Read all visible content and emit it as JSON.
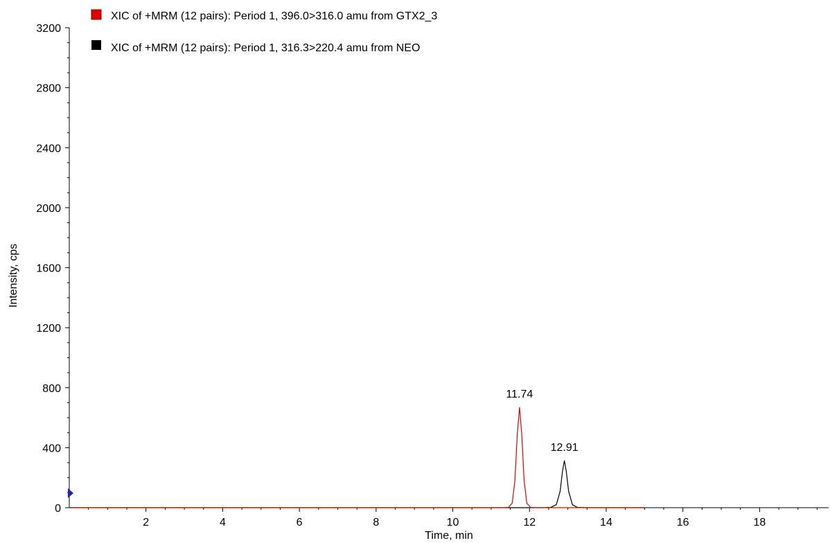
{
  "chart_data": {
    "type": "line",
    "xlabel": "Time, min",
    "ylabel": "Intensity, cps",
    "xlim": [
      0,
      19.8
    ],
    "ylim": [
      0,
      3200
    ],
    "x_ticks": [
      2,
      4,
      6,
      8,
      10,
      12,
      14,
      16,
      18
    ],
    "y_ticks": [
      0,
      400,
      800,
      1200,
      1600,
      2000,
      2400,
      2800,
      3200
    ],
    "legend_position": "top-left",
    "series": [
      {
        "name": "XIC of +MRM (12 pairs): Period 1, 396.0>316.0 amu from GTX2_3",
        "color": "#e00000",
        "x": [
          0,
          2,
          4,
          6,
          8,
          10,
          11.3,
          11.45,
          11.55,
          11.62,
          11.68,
          11.74,
          11.8,
          11.86,
          11.93,
          12.03,
          12.2,
          13,
          14,
          15
        ],
        "y": [
          0,
          0,
          0,
          0,
          0,
          0,
          0,
          2,
          30,
          180,
          480,
          670,
          480,
          180,
          30,
          2,
          0,
          0,
          0,
          0
        ],
        "peak_label": "11.74",
        "peak": {
          "x": 11.74,
          "y": 670
        }
      },
      {
        "name": "XIC of +MRM (12 pairs): Period 1, 316.3>220.4 amu from NEO",
        "color": "#000000",
        "x": [
          0,
          2,
          4,
          6,
          8,
          10,
          12.3,
          12.55,
          12.7,
          12.8,
          12.86,
          12.91,
          12.96,
          13.02,
          13.12,
          13.25,
          13.5,
          14,
          15
        ],
        "y": [
          0,
          0,
          0,
          0,
          0,
          0,
          0,
          2,
          20,
          110,
          240,
          315,
          240,
          110,
          20,
          2,
          0,
          0,
          0
        ],
        "peak_label": "12.91",
        "peak": {
          "x": 12.91,
          "y": 315
        }
      }
    ]
  }
}
